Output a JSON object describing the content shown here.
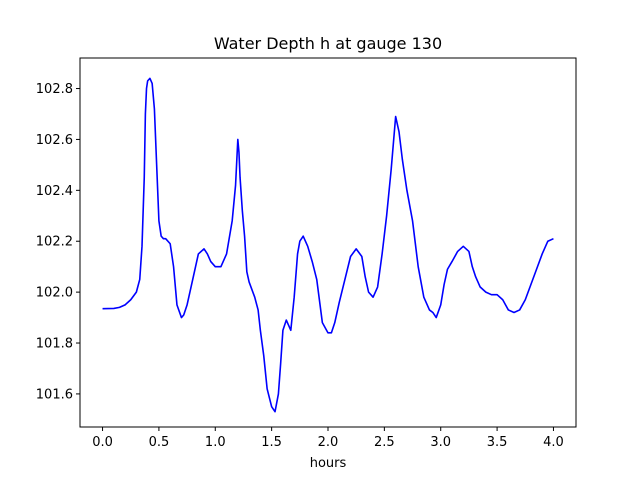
{
  "chart_data": {
    "type": "line",
    "title": "Water Depth h at gauge 130",
    "xlabel": "hours",
    "ylabel": "",
    "xlim": [
      -0.2,
      4.2
    ],
    "ylim": [
      101.47,
      102.92
    ],
    "xticks": [
      0.0,
      0.5,
      1.0,
      1.5,
      2.0,
      2.5,
      3.0,
      3.5,
      4.0
    ],
    "xtick_labels": [
      "0.0",
      "0.5",
      "1.0",
      "1.5",
      "2.0",
      "2.5",
      "3.0",
      "3.5",
      "4.0"
    ],
    "yticks": [
      101.6,
      101.8,
      102.0,
      102.2,
      102.4,
      102.6,
      102.8
    ],
    "ytick_labels": [
      "101.6",
      "101.8",
      "102.0",
      "102.2",
      "102.4",
      "102.6",
      "102.8"
    ],
    "grid": false,
    "series": [
      {
        "color": "#0000ff",
        "x": [
          0.0,
          0.1,
          0.15,
          0.2,
          0.25,
          0.3,
          0.33,
          0.35,
          0.37,
          0.38,
          0.39,
          0.4,
          0.42,
          0.44,
          0.46,
          0.48,
          0.5,
          0.52,
          0.54,
          0.56,
          0.6,
          0.63,
          0.66,
          0.7,
          0.72,
          0.75,
          0.8,
          0.85,
          0.9,
          0.93,
          0.96,
          1.0,
          1.05,
          1.1,
          1.15,
          1.18,
          1.2,
          1.21,
          1.22,
          1.24,
          1.26,
          1.28,
          1.3,
          1.35,
          1.38,
          1.4,
          1.43,
          1.46,
          1.5,
          1.53,
          1.56,
          1.58,
          1.6,
          1.63,
          1.65,
          1.67,
          1.7,
          1.73,
          1.75,
          1.78,
          1.82,
          1.86,
          1.9,
          1.95,
          2.0,
          2.03,
          2.06,
          2.1,
          2.15,
          2.2,
          2.25,
          2.3,
          2.33,
          2.36,
          2.4,
          2.44,
          2.48,
          2.52,
          2.56,
          2.6,
          2.63,
          2.66,
          2.7,
          2.75,
          2.8,
          2.85,
          2.9,
          2.93,
          2.96,
          3.0,
          3.03,
          3.06,
          3.1,
          3.15,
          3.2,
          3.25,
          3.28,
          3.31,
          3.35,
          3.4,
          3.45,
          3.5,
          3.55,
          3.6,
          3.65,
          3.7,
          3.75,
          3.8,
          3.85,
          3.9,
          3.95,
          4.0
        ],
        "y": [
          101.935,
          101.936,
          101.94,
          101.95,
          101.97,
          102.0,
          102.05,
          102.18,
          102.45,
          102.7,
          102.8,
          102.83,
          102.84,
          102.82,
          102.72,
          102.5,
          102.28,
          102.22,
          102.21,
          102.21,
          102.19,
          102.1,
          101.95,
          101.9,
          101.91,
          101.95,
          102.05,
          102.15,
          102.17,
          102.15,
          102.12,
          102.1,
          102.1,
          102.15,
          102.28,
          102.42,
          102.6,
          102.55,
          102.45,
          102.32,
          102.22,
          102.08,
          102.04,
          101.98,
          101.93,
          101.85,
          101.75,
          101.62,
          101.55,
          101.53,
          101.6,
          101.72,
          101.85,
          101.89,
          101.87,
          101.85,
          101.98,
          102.15,
          102.2,
          102.22,
          102.18,
          102.12,
          102.05,
          101.88,
          101.84,
          101.84,
          101.88,
          101.96,
          102.05,
          102.14,
          102.17,
          102.14,
          102.06,
          102.0,
          101.98,
          102.02,
          102.15,
          102.3,
          102.48,
          102.69,
          102.63,
          102.52,
          102.4,
          102.28,
          102.1,
          101.98,
          101.93,
          101.92,
          101.9,
          101.95,
          102.03,
          102.09,
          102.12,
          102.16,
          102.18,
          102.16,
          102.1,
          102.06,
          102.02,
          102.0,
          101.99,
          101.99,
          101.97,
          101.93,
          101.92,
          101.93,
          101.97,
          102.03,
          102.09,
          102.15,
          102.2,
          102.21
        ]
      }
    ]
  }
}
